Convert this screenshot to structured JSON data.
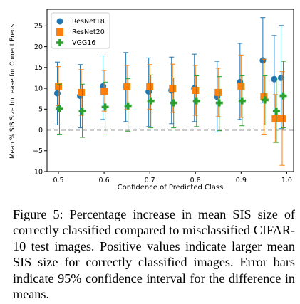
{
  "chart_data": {
    "type": "scatter",
    "xlabel": "Confidence of Predicted Class",
    "ylabel": "Mean % SIS Size Increase for Correct Preds.",
    "xlim": [
      0.475,
      1.015
    ],
    "ylim": [
      -10,
      29
    ],
    "xticks": [
      0.5,
      0.6,
      0.7,
      0.8,
      0.9,
      1.0
    ],
    "xtick_labels": [
      "0.5",
      "0.6",
      "0.7",
      "0.8",
      "0.9",
      "1.0"
    ],
    "yticks": [
      -10,
      -5,
      0,
      5,
      10,
      15,
      20,
      25
    ],
    "ytick_labels": [
      "−10",
      "−5",
      "0",
      "5",
      "10",
      "15",
      "20",
      "25"
    ],
    "reference_line": {
      "y": 0,
      "style": "dashed",
      "color": "#333333"
    },
    "legend_position": "top-left",
    "series": [
      {
        "name": "ResNet18",
        "marker": "circle",
        "color": "#1f77b4",
        "points": [
          {
            "x": 0.5,
            "y": 8.8,
            "lo": 1.2,
            "hi": 16.3
          },
          {
            "x": 0.55,
            "y": 8.2,
            "lo": 0.5,
            "hi": 15.7
          },
          {
            "x": 0.6,
            "y": 10.5,
            "lo": 2.5,
            "hi": 17.8
          },
          {
            "x": 0.65,
            "y": 10.4,
            "lo": 2.0,
            "hi": 18.6
          },
          {
            "x": 0.7,
            "y": 9.2,
            "lo": 0.8,
            "hi": 17.3
          },
          {
            "x": 0.75,
            "y": 9.5,
            "lo": 1.5,
            "hi": 17.5
          },
          {
            "x": 0.8,
            "y": 10.0,
            "lo": 2.0,
            "hi": 18.2
          },
          {
            "x": 0.85,
            "y": 8.0,
            "lo": -0.5,
            "hi": 16.5
          },
          {
            "x": 0.9,
            "y": 11.5,
            "lo": 2.5,
            "hi": 20.8
          },
          {
            "x": 0.95,
            "y": 16.7,
            "lo": 6.5,
            "hi": 27.0
          },
          {
            "x": 0.975,
            "y": 12.2,
            "lo": 2.0,
            "hi": 22.7
          },
          {
            "x": 0.99,
            "y": 12.5,
            "lo": 0.3,
            "hi": 25.1
          }
        ]
      },
      {
        "name": "ResNet20",
        "marker": "square",
        "color": "#ff7f0e",
        "points": [
          {
            "x": 0.5,
            "y": 10.5,
            "lo": 5.8,
            "hi": 15.2
          },
          {
            "x": 0.55,
            "y": 9.0,
            "lo": 3.5,
            "hi": 14.5
          },
          {
            "x": 0.6,
            "y": 9.3,
            "lo": 4.5,
            "hi": 14.3
          },
          {
            "x": 0.65,
            "y": 10.4,
            "lo": 5.0,
            "hi": 15.5
          },
          {
            "x": 0.7,
            "y": 10.4,
            "lo": 5.0,
            "hi": 15.7
          },
          {
            "x": 0.75,
            "y": 10.0,
            "lo": 4.2,
            "hi": 15.8
          },
          {
            "x": 0.8,
            "y": 9.5,
            "lo": 3.5,
            "hi": 15.5
          },
          {
            "x": 0.85,
            "y": 9.0,
            "lo": 3.2,
            "hi": 14.8
          },
          {
            "x": 0.9,
            "y": 10.5,
            "lo": 3.0,
            "hi": 18.0
          },
          {
            "x": 0.95,
            "y": 8.0,
            "lo": -1.0,
            "hi": 17.0
          },
          {
            "x": 0.975,
            "y": 2.7,
            "lo": -3.0,
            "hi": 8.5
          },
          {
            "x": 0.99,
            "y": 2.7,
            "lo": -8.5,
            "hi": 14.0
          }
        ]
      },
      {
        "name": "VGG16",
        "marker": "plus",
        "color": "#2ca02c",
        "points": [
          {
            "x": 0.5,
            "y": 5.2,
            "lo": -1.0,
            "hi": 11.0
          },
          {
            "x": 0.55,
            "y": 4.5,
            "lo": -1.8,
            "hi": 11.0
          },
          {
            "x": 0.6,
            "y": 5.5,
            "lo": -0.5,
            "hi": 11.5
          },
          {
            "x": 0.65,
            "y": 5.8,
            "lo": -0.3,
            "hi": 12.3
          },
          {
            "x": 0.7,
            "y": 7.0,
            "lo": 0.5,
            "hi": 13.2
          },
          {
            "x": 0.75,
            "y": 6.5,
            "lo": 0.5,
            "hi": 12.5
          },
          {
            "x": 0.8,
            "y": 7.0,
            "lo": 0.8,
            "hi": 13.0
          },
          {
            "x": 0.85,
            "y": 6.5,
            "lo": -0.2,
            "hi": 12.8
          },
          {
            "x": 0.9,
            "y": 7.0,
            "lo": 1.0,
            "hi": 13.0
          },
          {
            "x": 0.95,
            "y": 7.2,
            "lo": 1.2,
            "hi": 13.0
          },
          {
            "x": 0.975,
            "y": 4.5,
            "lo": -3.0,
            "hi": 12.5
          },
          {
            "x": 0.99,
            "y": 8.2,
            "lo": 0.5,
            "hi": 16.5
          }
        ]
      }
    ]
  },
  "caption": {
    "text": "Figure 5: Percentage increase in mean SIS size of correctly classified compared to misclassified CIFAR-10 test images. Positive values indicate larger mean SIS size for correctly classified images. Error bars indicate 95% confidence interval for the difference in means."
  }
}
